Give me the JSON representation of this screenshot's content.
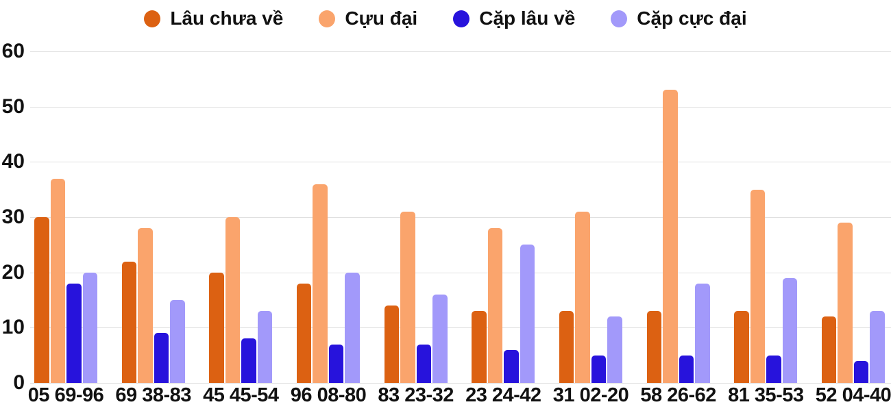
{
  "chart_data": {
    "type": "bar",
    "title": "",
    "categories": [
      "05 69-96",
      "69 38-83",
      "45 45-54",
      "96 08-80",
      "83 23-32",
      "23 24-42",
      "31 02-20",
      "58 26-62",
      "81 35-53",
      "52 04-40"
    ],
    "series": [
      {
        "name": "Lâu chưa về",
        "color": "#DC6112",
        "values": [
          30,
          22,
          20,
          18,
          14,
          13,
          13,
          13,
          13,
          12
        ]
      },
      {
        "name": "Cựu đại",
        "color": "#FAA46C",
        "values": [
          37,
          28,
          30,
          36,
          31,
          28,
          31,
          53,
          35,
          29
        ]
      },
      {
        "name": "Cặp lâu về",
        "color": "#2713DC",
        "values": [
          18,
          9,
          8,
          7,
          7,
          6,
          5,
          5,
          5,
          4
        ]
      },
      {
        "name": "Cặp cực đại",
        "color": "#A299FA",
        "values": [
          20,
          15,
          13,
          20,
          16,
          25,
          12,
          18,
          19,
          13
        ]
      }
    ],
    "xlabel": "",
    "ylabel": "",
    "y_ticks": [
      0,
      10,
      20,
      30,
      40,
      50,
      60
    ],
    "ylim": [
      0,
      60
    ],
    "legend_position": "top",
    "grid": true,
    "background_color": "#ffffff",
    "gridline_color": "#e0e0e0",
    "text_color": "#111111"
  }
}
